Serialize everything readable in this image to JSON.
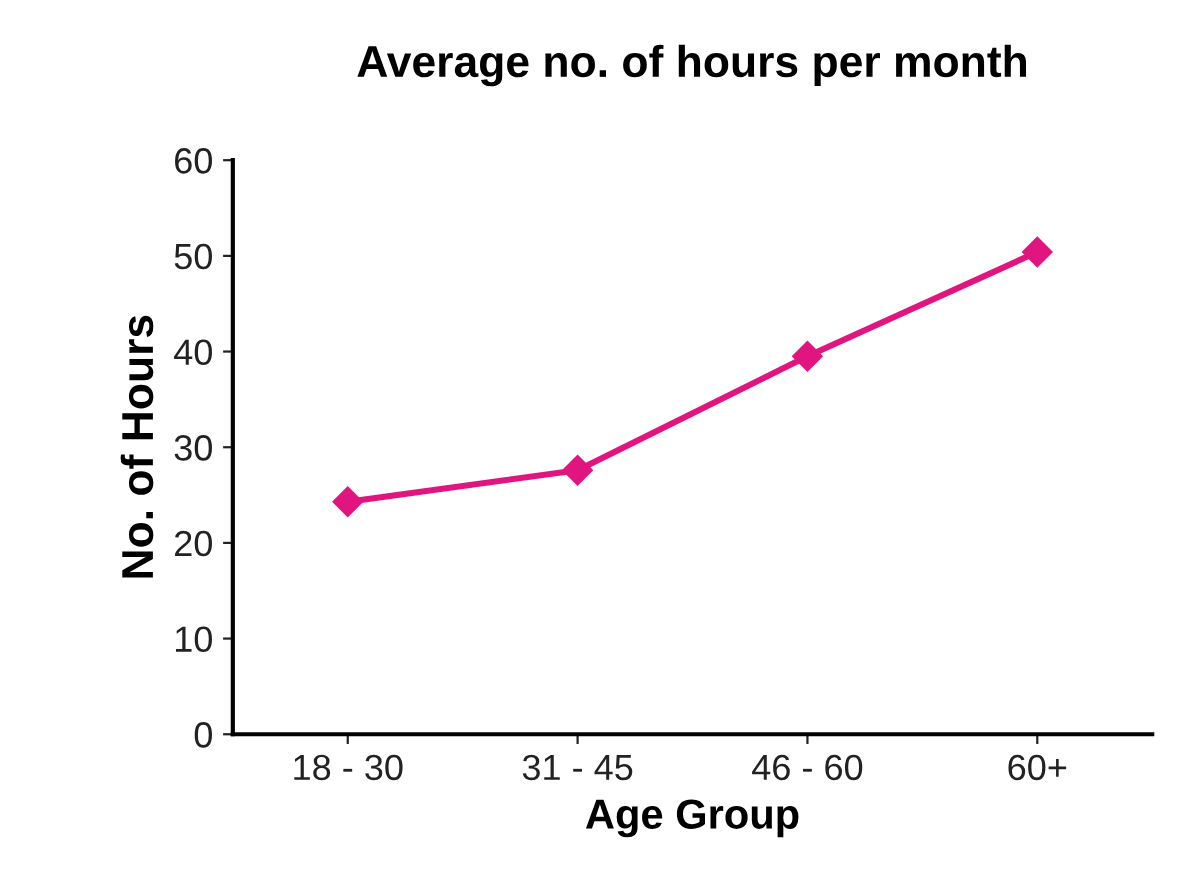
{
  "chart_data": {
    "type": "line",
    "title": "Average no. of hours per month",
    "xlabel": "Age Group",
    "ylabel": "No. of Hours",
    "categories": [
      "18 - 30",
      "31 - 45",
      "46 - 60",
      "60+"
    ],
    "series": [
      {
        "color": "#e0157f",
        "values": [
          24.3,
          27.6,
          39.5,
          50.4
        ]
      }
    ],
    "ylim": [
      0,
      60
    ],
    "yticks": [
      0,
      10,
      20,
      30,
      40,
      50,
      60
    ],
    "marker": "diamond",
    "line_style": "solid",
    "grid": false,
    "legend": false
  }
}
